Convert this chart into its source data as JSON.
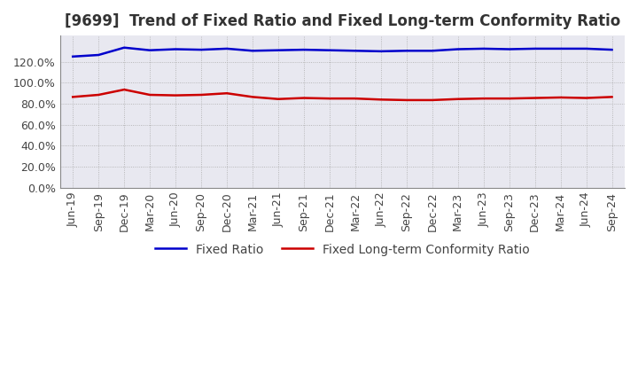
{
  "title": "[9699]  Trend of Fixed Ratio and Fixed Long-term Conformity Ratio",
  "x_labels": [
    "Jun-19",
    "Sep-19",
    "Dec-19",
    "Mar-20",
    "Jun-20",
    "Sep-20",
    "Dec-20",
    "Mar-21",
    "Jun-21",
    "Sep-21",
    "Dec-21",
    "Mar-22",
    "Jun-22",
    "Sep-22",
    "Dec-22",
    "Mar-23",
    "Jun-23",
    "Sep-23",
    "Dec-23",
    "Mar-24",
    "Jun-24",
    "Sep-24"
  ],
  "fixed_ratio": [
    125.0,
    126.5,
    133.5,
    131.0,
    132.0,
    131.5,
    132.5,
    130.5,
    131.0,
    131.5,
    131.0,
    130.5,
    130.0,
    130.5,
    130.5,
    132.0,
    132.5,
    132.0,
    132.5,
    132.5,
    132.5,
    131.5
  ],
  "fixed_lt_ratio": [
    86.5,
    88.5,
    93.5,
    88.5,
    88.0,
    88.5,
    90.0,
    86.5,
    84.5,
    85.5,
    85.0,
    85.0,
    84.0,
    83.5,
    83.5,
    84.5,
    85.0,
    85.0,
    85.5,
    86.0,
    85.5,
    86.5
  ],
  "fixed_ratio_color": "#0000cc",
  "fixed_lt_ratio_color": "#cc0000",
  "background_color": "#ffffff",
  "grid_color": "#aaaaaa",
  "plot_bg_color": "#e8e8f0",
  "ylim": [
    0,
    145
  ],
  "yticks": [
    0,
    20,
    40,
    60,
    80,
    100,
    120
  ],
  "title_fontsize": 12,
  "legend_fontsize": 10,
  "tick_fontsize": 9
}
